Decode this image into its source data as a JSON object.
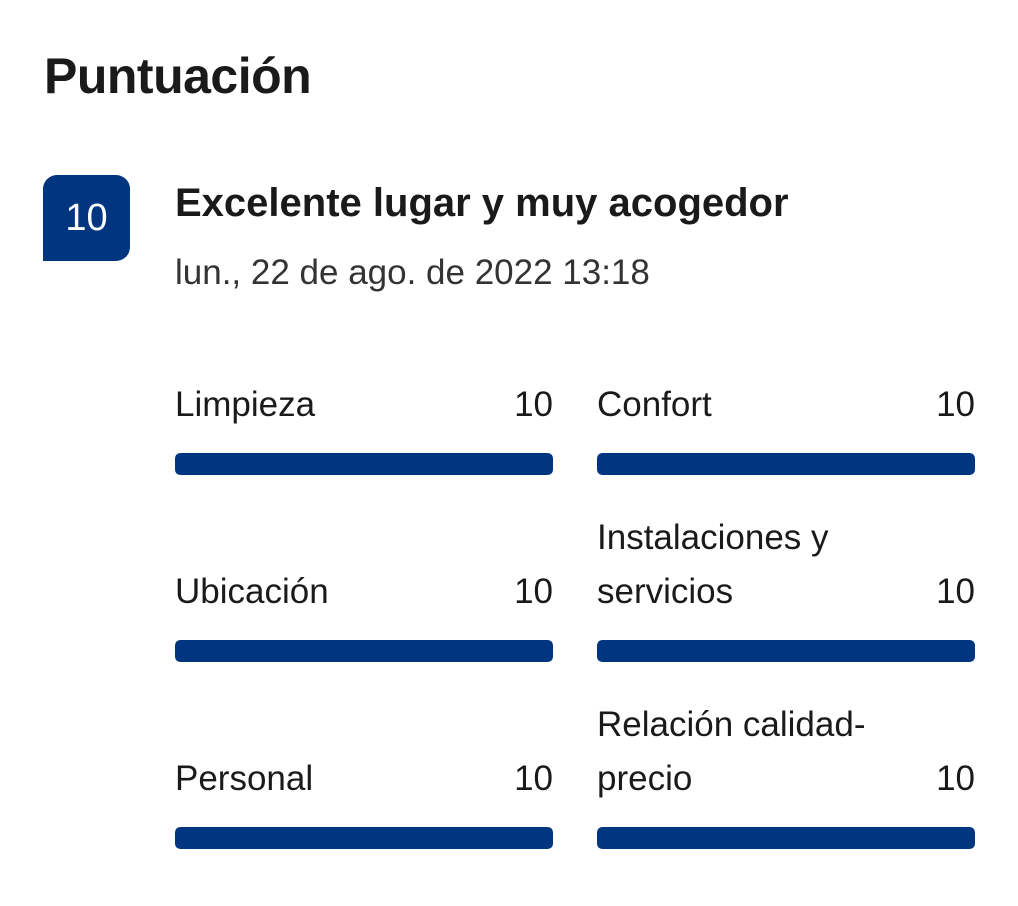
{
  "section_title": "Puntuación",
  "review": {
    "score": "10",
    "title": "Excelente lugar y muy acogedor",
    "date": "lun., 22 de ago. de 2022 13:18"
  },
  "colors": {
    "accent": "#003580"
  },
  "max_score": 10,
  "categories": [
    {
      "label": "Limpieza",
      "value": "10",
      "fraction": 1.0
    },
    {
      "label": "Confort",
      "value": "10",
      "fraction": 1.0
    },
    {
      "label": "Ubicación",
      "value": "10",
      "fraction": 1.0
    },
    {
      "label": "Instalaciones y servicios",
      "value": "10",
      "fraction": 1.0
    },
    {
      "label": "Personal",
      "value": "10",
      "fraction": 1.0
    },
    {
      "label": "Relación calidad-precio",
      "value": "10",
      "fraction": 1.0
    }
  ]
}
